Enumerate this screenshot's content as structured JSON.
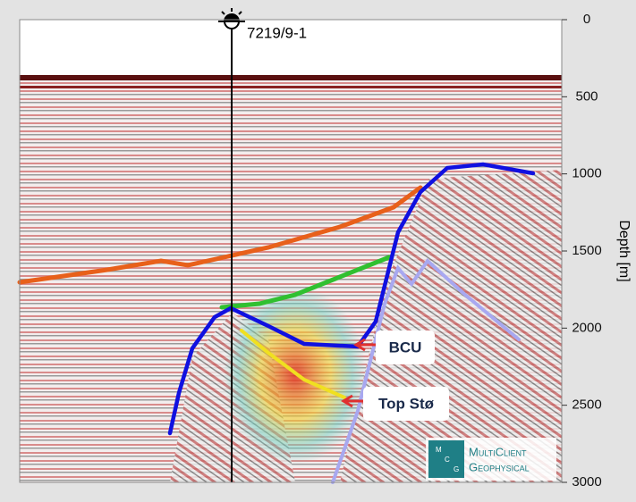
{
  "well": {
    "name": "7219/9-1"
  },
  "axis": {
    "label": "Depth [m]",
    "ylim": [
      0,
      3000
    ],
    "ticks": [
      0,
      500,
      1000,
      1500,
      2000,
      2500,
      3000
    ]
  },
  "annotations": [
    "BCU",
    "Top Stø"
  ],
  "logo": {
    "letters": [
      "M",
      "C",
      "G"
    ],
    "line1": "MultiClient",
    "line2": "Geophysical"
  }
}
